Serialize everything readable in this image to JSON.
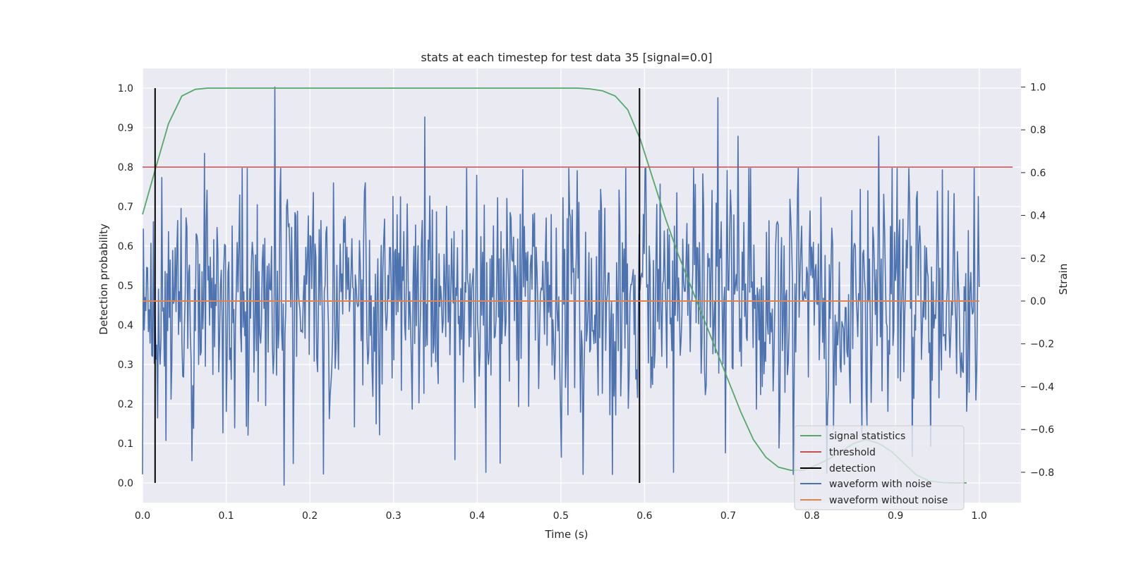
{
  "chart_data": {
    "type": "line",
    "title": "stats at each timestep for test data 35 [signal=0.0]",
    "xlabel": "Time (s)",
    "ylabel": "Detection probability",
    "y2label": "Strain",
    "xlim": [
      0.0,
      1.05
    ],
    "ylim": [
      -0.05,
      1.05
    ],
    "y2lim": [
      -0.942,
      1.087
    ],
    "x_ticks": [
      0.0,
      0.1,
      0.2,
      0.3,
      0.4,
      0.5,
      0.6,
      0.7,
      0.8,
      0.9,
      1.0
    ],
    "x_tick_labels": [
      "0.0",
      "0.1",
      "0.2",
      "0.3",
      "0.4",
      "0.5",
      "0.6",
      "0.7",
      "0.8",
      "0.9",
      "1.0"
    ],
    "y_ticks": [
      0.0,
      0.1,
      0.2,
      0.3,
      0.4,
      0.5,
      0.6,
      0.7,
      0.8,
      0.9,
      1.0
    ],
    "y_tick_labels": [
      "0.0",
      "0.1",
      "0.2",
      "0.3",
      "0.4",
      "0.5",
      "0.6",
      "0.7",
      "0.8",
      "0.9",
      "1.0"
    ],
    "y2_ticks": [
      -0.8,
      -0.6,
      -0.4,
      -0.2,
      0.0,
      0.2,
      0.4,
      0.6,
      0.8,
      1.0
    ],
    "y2_tick_labels": [
      "−0.8",
      "−0.6",
      "−0.4",
      "−0.2",
      "0.0",
      "0.2",
      "0.4",
      "0.6",
      "0.8",
      "1.0"
    ],
    "grid": true,
    "legend_position": "lower-right",
    "colors": {
      "background": "#eaeaf2",
      "grid": "#ffffff",
      "signal_statistics": "#55a868",
      "threshold": "#c44e52",
      "detection": "#000000",
      "waveform_noise": "#4c72b0",
      "waveform_clean": "#dd8452"
    },
    "series": [
      {
        "name": "signal statistics",
        "axis": "left",
        "color": "#55a868",
        "x": [
          0.0,
          0.016,
          0.031,
          0.047,
          0.063,
          0.078,
          0.094,
          0.11,
          0.2,
          0.3,
          0.4,
          0.5,
          0.52,
          0.535,
          0.55,
          0.565,
          0.58,
          0.595,
          0.61,
          0.625,
          0.64,
          0.655,
          0.67,
          0.685,
          0.7,
          0.715,
          0.73,
          0.745,
          0.76,
          0.775,
          0.79,
          0.805,
          0.82,
          0.835,
          0.85,
          0.865,
          0.88,
          0.895,
          0.91,
          0.925,
          0.94,
          0.955,
          0.97,
          0.985
        ],
        "y": [
          0.68,
          0.8,
          0.91,
          0.98,
          0.997,
          1.0,
          1.0,
          1.0,
          1.0,
          1.0,
          1.0,
          1.0,
          1.0,
          0.998,
          0.993,
          0.98,
          0.945,
          0.87,
          0.77,
          0.67,
          0.58,
          0.5,
          0.42,
          0.34,
          0.26,
          0.18,
          0.11,
          0.065,
          0.04,
          0.032,
          0.032,
          0.045,
          0.06,
          0.08,
          0.1,
          0.11,
          0.1,
          0.08,
          0.05,
          0.02,
          0.005,
          0.001,
          0.0,
          0.0
        ]
      },
      {
        "name": "threshold",
        "axis": "left",
        "color": "#c44e52",
        "x": [
          0.0,
          1.04
        ],
        "y": [
          0.8,
          0.8
        ]
      },
      {
        "name": "detection",
        "axis": "left",
        "color": "#000000",
        "type": "vlines",
        "x": [
          0.015,
          0.594
        ],
        "ymin": 0.0,
        "ymax": 1.0
      },
      {
        "name": "waveform with noise",
        "axis": "right",
        "color": "#4c72b0",
        "x_start": 0.0,
        "x_end": 1.0,
        "points": 1000,
        "range": [
          -0.86,
          1.0
        ],
        "peaks": [
          {
            "x": 0.158,
            "y": 1.0
          },
          {
            "x": 0.169,
            "y": -0.86
          },
          {
            "x": 0.337,
            "y": 0.86
          },
          {
            "x": 0.688,
            "y": 0.95
          },
          {
            "x": 0.41,
            "y": -0.8
          },
          {
            "x": 0.635,
            "y": -0.8
          },
          {
            "x": 0.5,
            "y": -0.73
          },
          {
            "x": 0.074,
            "y": 0.69
          },
          {
            "x": 0.712,
            "y": 0.77
          },
          {
            "x": 0.88,
            "y": 0.77
          }
        ]
      },
      {
        "name": "waveform without noise",
        "axis": "right",
        "color": "#dd8452",
        "x": [
          0.0,
          1.0
        ],
        "y": [
          0.0,
          0.0
        ]
      }
    ]
  }
}
